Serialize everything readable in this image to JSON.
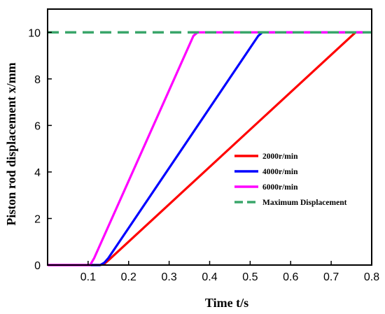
{
  "chart_data": {
    "type": "line",
    "xlabel": "Time t/s",
    "ylabel": "Piston rod displacement x/mm",
    "xlim": [
      0,
      0.8
    ],
    "ylim": [
      0,
      11
    ],
    "xticks": [
      0.1,
      0.2,
      0.3,
      0.4,
      0.5,
      0.6,
      0.7,
      0.8
    ],
    "yticks": [
      0,
      2,
      4,
      6,
      8,
      10
    ],
    "grid": false,
    "legend": "right-center",
    "series": [
      {
        "name": "2000r/min",
        "color": "#ff0000",
        "dash": "solid",
        "x": [
          0,
          0.13,
          0.14,
          0.15,
          0.76,
          0.8
        ],
        "y": [
          0,
          0,
          0.05,
          0.2,
          10,
          10
        ]
      },
      {
        "name": "4000r/min",
        "color": "#0000ff",
        "dash": "solid",
        "x": [
          0,
          0.13,
          0.14,
          0.15,
          0.52,
          0.53,
          0.8
        ],
        "y": [
          0,
          0,
          0.1,
          0.3,
          9.85,
          10,
          10
        ]
      },
      {
        "name": "6000r/min",
        "color": "#ff00ff",
        "dash": "solid",
        "x": [
          0,
          0.105,
          0.115,
          0.36,
          0.37,
          0.8
        ],
        "y": [
          0,
          0,
          0.3,
          9.85,
          10,
          10
        ]
      },
      {
        "name": "Maximum Displacement",
        "color": "#3aa66a",
        "dash": "dashed",
        "x": [
          0,
          0.8
        ],
        "y": [
          10,
          10
        ]
      }
    ]
  }
}
